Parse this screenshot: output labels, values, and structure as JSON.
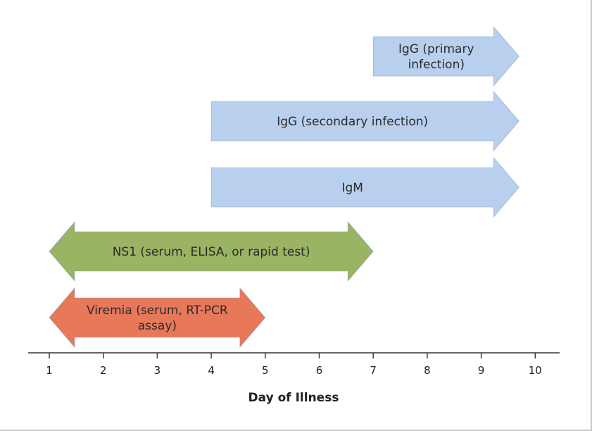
{
  "chart_data": {
    "type": "timeline",
    "xlabel": "Day of Illness",
    "xlim": [
      0.6,
      10.5
    ],
    "xticks": [
      1,
      2,
      3,
      4,
      5,
      6,
      7,
      8,
      9,
      10
    ],
    "grid": false,
    "series": [
      {
        "name": "IgG (primary infection)",
        "lines": [
          "IgG (primary",
          "infection)"
        ],
        "start": 7,
        "end": 9.7,
        "start_arrow": false,
        "end_arrow": true,
        "color": "#b8cfee"
      },
      {
        "name": "IgG (secondary infection)",
        "lines": [
          "IgG (secondary infection)"
        ],
        "start": 4,
        "end": 9.7,
        "start_arrow": false,
        "end_arrow": true,
        "color": "#b8cfee"
      },
      {
        "name": "IgM",
        "lines": [
          "IgM"
        ],
        "start": 4,
        "end": 9.7,
        "start_arrow": false,
        "end_arrow": true,
        "color": "#b8cfee"
      },
      {
        "name": "NS1 (serum, ELISA, or rapid test)",
        "lines": [
          "NS1 (serum, ELISA, or rapid test)"
        ],
        "start": 1,
        "end": 7,
        "start_arrow": true,
        "end_arrow": true,
        "color": "#9bb463"
      },
      {
        "name": "Viremia (serum, RT-PCR assay)",
        "lines": [
          "Viremia (serum, RT-PCR",
          "assay)"
        ],
        "start": 1,
        "end": 5,
        "start_arrow": true,
        "end_arrow": true,
        "color": "#e8785a"
      }
    ]
  }
}
